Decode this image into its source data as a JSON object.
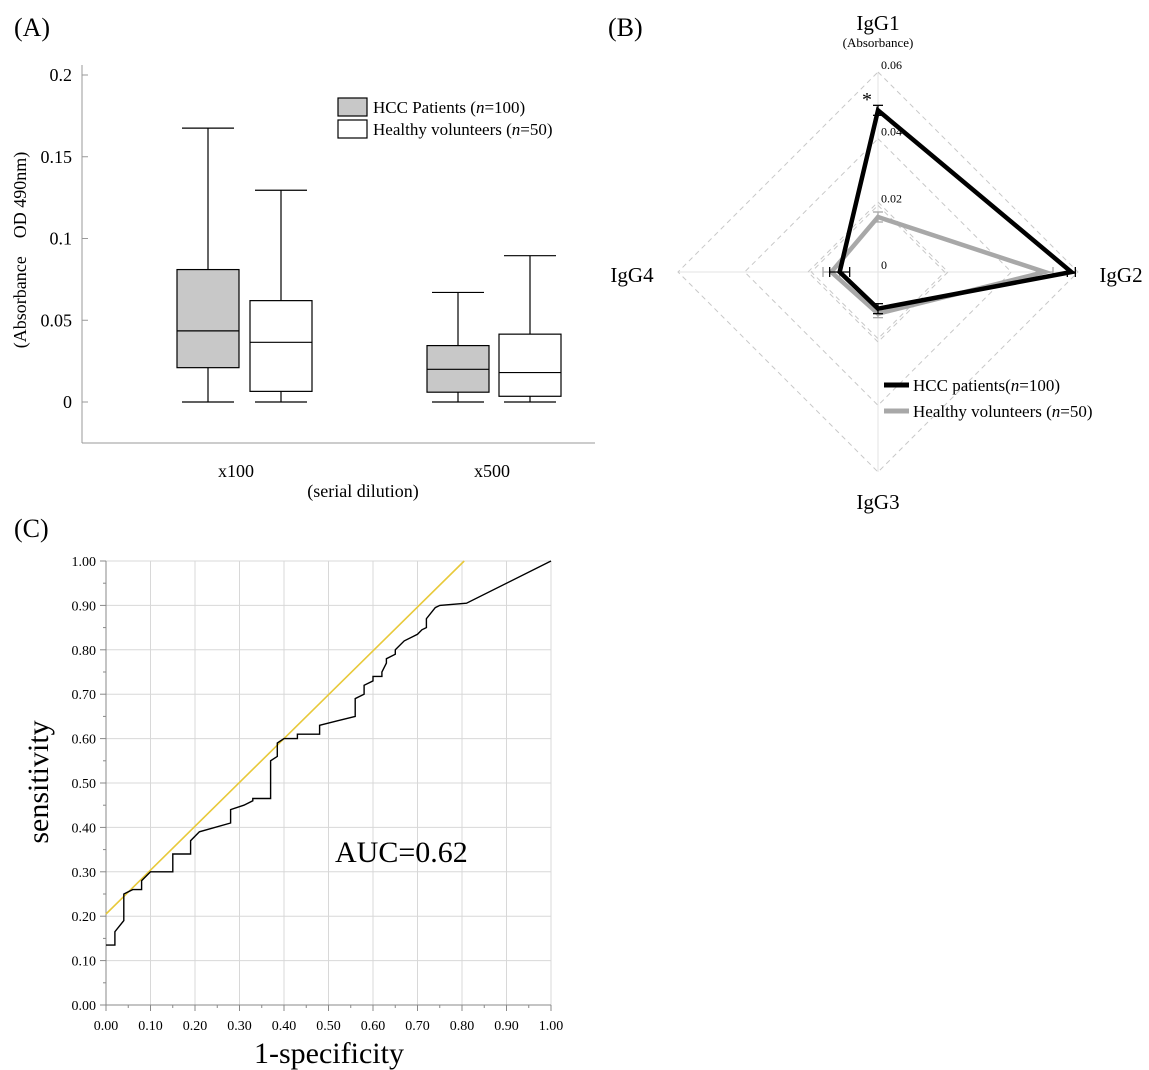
{
  "figure": {
    "width": 1149,
    "height": 1070
  },
  "chart_data": [
    {
      "panel": "(A)",
      "type": "box",
      "ylabel": "(Absorbance    OD 490nm)",
      "xlabel": "(serial dilution)",
      "ylim": [
        -0.025,
        0.2
      ],
      "yticks": [
        0,
        0.05,
        0.1,
        0.15,
        0.2
      ],
      "ytick_labels": [
        "0",
        "0.05",
        "0.1",
        "0.15",
        "0.2"
      ],
      "categories": [
        "x100",
        "x500"
      ],
      "legend": {
        "position": "top-right",
        "entries": [
          {
            "series": 0,
            "text": "HCC Patients (",
            "italic": "n",
            "suffix": "=100)"
          },
          {
            "series": 1,
            "text": "Healthy volunteers (",
            "italic": "n",
            "suffix": "=50)"
          }
        ]
      },
      "series": [
        {
          "key": "hcc",
          "fill": "#c8c8c8",
          "boxes": [
            {
              "min": 0,
              "q1": 0.021,
              "median": 0.0435,
              "q3": 0.081,
              "max": 0.1675
            },
            {
              "min": 0,
              "q1": 0.006,
              "median": 0.02,
              "q3": 0.0345,
              "max": 0.067
            }
          ]
        },
        {
          "key": "healthy",
          "fill": "#ffffff",
          "boxes": [
            {
              "min": 0,
              "q1": 0.0065,
              "median": 0.0365,
              "q3": 0.062,
              "max": 0.1295
            },
            {
              "min": 0,
              "q1": 0.0035,
              "median": 0.018,
              "q3": 0.0415,
              "max": 0.0895
            }
          ]
        }
      ]
    },
    {
      "panel": "(B)",
      "type": "radar",
      "axis_title_sub": "(Absorbance)",
      "axes": [
        "IgG1",
        "IgG2",
        "IgG3",
        "IgG4"
      ],
      "rmax": 0.06,
      "ring_values": [
        0,
        0.02,
        0.04,
        0.06
      ],
      "ring_labels": [
        "0",
        "0.02",
        "0.04",
        "0.06"
      ],
      "annotation": "*",
      "legend": {
        "position": "bottom-right",
        "entries": [
          {
            "series": 0,
            "text": "HCC patients(",
            "italic": "n",
            "suffix": "=100)"
          },
          {
            "series": 1,
            "text": "Healthy volunteers (",
            "italic": "n",
            "suffix": "=50)"
          }
        ]
      },
      "series": [
        {
          "key": "hcc",
          "color": "#000000",
          "values": [
            0.0485,
            0.058,
            0.011,
            0.0115
          ],
          "errors": [
            0.0015,
            0.0012,
            0.0015,
            0.003
          ]
        },
        {
          "key": "healthy",
          "color": "#a8a8a8",
          "values": [
            0.0165,
            0.05,
            0.0125,
            0.014
          ],
          "errors": [
            0.0015,
            0.0025,
            0.0012,
            0.0025
          ]
        }
      ]
    },
    {
      "panel": "(C)",
      "type": "line",
      "xlabel": "1-specificity",
      "ylabel": "sensitivity",
      "annotation": "AUC=0.62",
      "xlim": [
        0,
        1
      ],
      "ylim": [
        0,
        1
      ],
      "xticks": [
        0,
        0.1,
        0.2,
        0.3,
        0.4,
        0.5,
        0.6,
        0.7,
        0.8,
        0.9,
        1.0
      ],
      "xtick_labels": [
        "0.00",
        "0.10",
        "0.20",
        "0.30",
        "0.40",
        "0.50",
        "0.60",
        "0.70",
        "0.80",
        "0.90",
        "1.00"
      ],
      "yticks": [
        0,
        0.1,
        0.2,
        0.3,
        0.4,
        0.5,
        0.6,
        0.7,
        0.8,
        0.9,
        1.0
      ],
      "ytick_labels": [
        "0.00",
        "0.10",
        "0.20",
        "0.30",
        "0.40",
        "0.50",
        "0.60",
        "0.70",
        "0.80",
        "0.90",
        "1.00"
      ],
      "grid": true,
      "series": [
        {
          "key": "reference",
          "color": "#e8c93a",
          "x": [
            0,
            0.805
          ],
          "y": [
            0.205,
            1.0
          ]
        },
        {
          "key": "roc",
          "color": "#000000",
          "x": [
            0,
            0.02,
            0.02,
            0.04,
            0.04,
            0.06,
            0.08,
            0.08,
            0.1,
            0.1,
            0.15,
            0.15,
            0.19,
            0.19,
            0.21,
            0.21,
            0.28,
            0.28,
            0.31,
            0.33,
            0.33,
            0.37,
            0.37,
            0.385,
            0.385,
            0.4,
            0.43,
            0.43,
            0.48,
            0.48,
            0.52,
            0.56,
            0.56,
            0.58,
            0.58,
            0.6,
            0.6,
            0.62,
            0.62,
            0.63,
            0.63,
            0.65,
            0.65,
            0.67,
            0.7,
            0.71,
            0.72,
            0.72,
            0.74,
            0.75,
            0.81,
            1.0
          ],
          "y": [
            0.135,
            0.135,
            0.165,
            0.19,
            0.25,
            0.26,
            0.26,
            0.28,
            0.3,
            0.3,
            0.3,
            0.34,
            0.34,
            0.37,
            0.39,
            0.39,
            0.41,
            0.44,
            0.45,
            0.46,
            0.465,
            0.465,
            0.55,
            0.56,
            0.59,
            0.6,
            0.6,
            0.61,
            0.61,
            0.63,
            0.64,
            0.65,
            0.69,
            0.7,
            0.72,
            0.73,
            0.74,
            0.74,
            0.75,
            0.77,
            0.78,
            0.79,
            0.8,
            0.82,
            0.835,
            0.845,
            0.85,
            0.87,
            0.895,
            0.9,
            0.905,
            1.0
          ]
        }
      ]
    }
  ]
}
